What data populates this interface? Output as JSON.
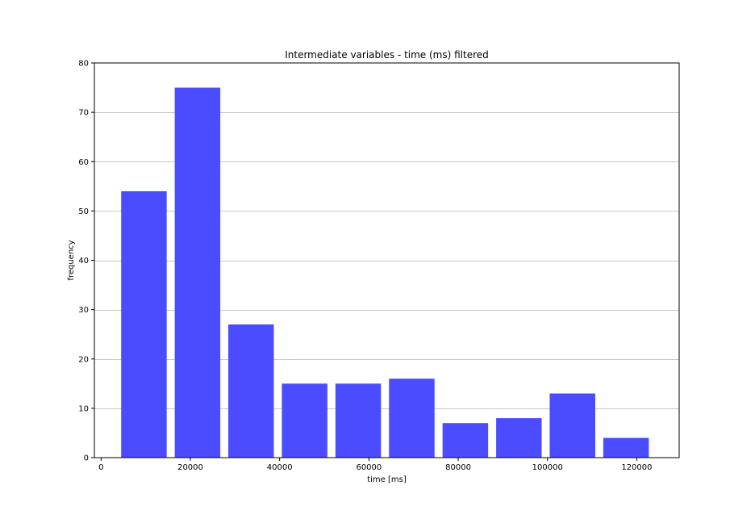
{
  "chart_data": {
    "type": "bar",
    "title": "Intermediate variables - time (ms) filtered",
    "xlabel": "time [ms]",
    "ylabel": "frequency",
    "xlim": [
      -1500,
      129500
    ],
    "ylim": [
      0,
      80
    ],
    "x_ticks": [
      0,
      20000,
      40000,
      60000,
      80000,
      100000,
      120000
    ],
    "y_ticks": [
      0,
      10,
      20,
      30,
      40,
      50,
      60,
      70,
      80
    ],
    "grid": "horizontal",
    "bar_color": "#4b4bff",
    "bins": [
      {
        "start": 4500,
        "end": 14700,
        "value": 54
      },
      {
        "start": 16500,
        "end": 26700,
        "value": 75
      },
      {
        "start": 28500,
        "end": 38700,
        "value": 27
      },
      {
        "start": 40500,
        "end": 50700,
        "value": 15
      },
      {
        "start": 52500,
        "end": 62700,
        "value": 15
      },
      {
        "start": 64500,
        "end": 74700,
        "value": 16
      },
      {
        "start": 76500,
        "end": 86700,
        "value": 7
      },
      {
        "start": 88500,
        "end": 98700,
        "value": 8
      },
      {
        "start": 100500,
        "end": 110700,
        "value": 13
      },
      {
        "start": 112500,
        "end": 122700,
        "value": 4
      }
    ]
  }
}
